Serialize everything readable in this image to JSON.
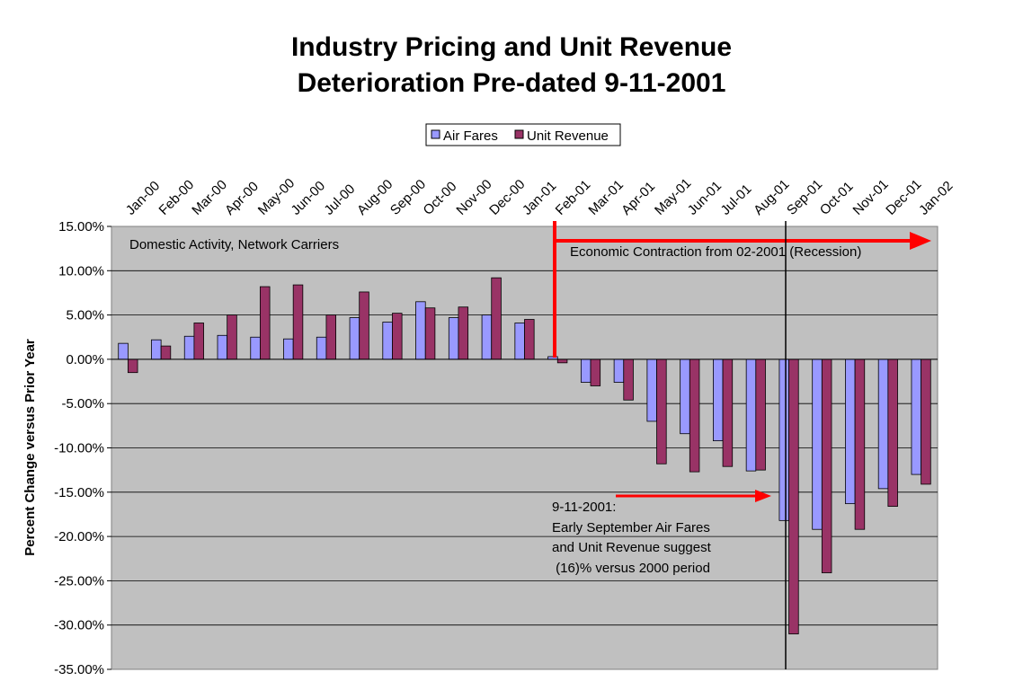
{
  "chart_data": {
    "type": "bar",
    "title_lines": [
      "Industry Pricing and Unit Revenue",
      "Deterioration Pre-dated 9-11-2001"
    ],
    "ylabel": "Percent Change versus Prior Year",
    "xlabel": "",
    "ylim": [
      -35,
      15
    ],
    "y_step": 5,
    "y_tick_labels": [
      "15.00%",
      "10.00%",
      "5.00%",
      "0.00%",
      "-5.00%",
      "-10.00%",
      "-15.00%",
      "-20.00%",
      "-25.00%",
      "-30.00%",
      "-35.00%"
    ],
    "x_tick_labels": [
      "Jan-00",
      "Feb-00",
      "Mar-00",
      "Apr-00",
      "May-00",
      "Jun-00",
      "Jul-00",
      "Aug-00",
      "Sep-00",
      "Oct-00",
      "Nov-00",
      "Dec-00",
      "Jan-01",
      "Feb-01",
      "Mar-01",
      "Apr-01",
      "May-01",
      "Jun-01",
      "Jul-01",
      "Aug-01",
      "Sep-01",
      "Oct-01",
      "Nov-01",
      "Dec-01",
      "Jan-02"
    ],
    "grid": true,
    "legend_position": "top-center",
    "series": [
      {
        "name": "Air Fares",
        "color": "#9999ff",
        "values": [
          1.8,
          2.2,
          2.6,
          2.7,
          2.5,
          2.3,
          2.5,
          4.7,
          4.2,
          6.5,
          4.7,
          5.0,
          4.1,
          0.3,
          -2.6,
          -2.6,
          -7.0,
          -8.4,
          -9.2,
          -12.6,
          -18.2,
          -19.2,
          -16.3,
          -14.6,
          -13.0
        ]
      },
      {
        "name": "Unit Revenue",
        "color": "#993366",
        "values": [
          -1.5,
          1.5,
          4.1,
          5.0,
          8.2,
          8.4,
          5.0,
          7.6,
          5.2,
          5.8,
          5.9,
          9.2,
          4.5,
          -0.4,
          -3.0,
          -4.6,
          -11.8,
          -12.7,
          -12.1,
          -12.5,
          -31.0,
          -24.1,
          -19.2,
          -16.6,
          -14.1
        ]
      }
    ],
    "annotations": {
      "domestic": "Domestic Activity, Network Carriers",
      "recession": "Economic Contraction from 02-2001  (Recession)",
      "sept_lines": [
        "9-11-2001:",
        "Early September Air Fares",
        "and Unit Revenue suggest",
        " (16)% versus 2000 period"
      ]
    },
    "colors": {
      "plot_background": "#c0c0c0",
      "arrow": "#ff0000",
      "gridline": "#000000"
    }
  }
}
